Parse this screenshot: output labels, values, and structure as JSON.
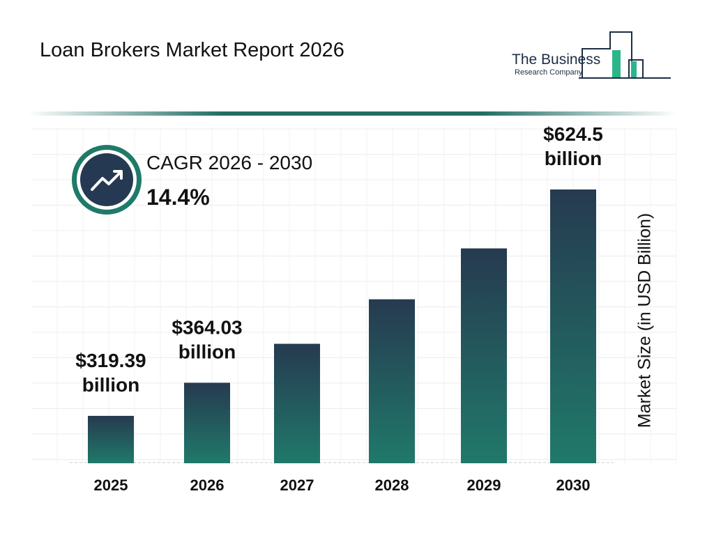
{
  "title": "Loan Brokers Market Report 2026",
  "logo": {
    "line1": "The Business",
    "line2": "Research Company"
  },
  "cagr": {
    "label": "CAGR 2026 - 2030",
    "value": "14.4%",
    "icon": "trending-up-icon"
  },
  "colors": {
    "bar_top": "#263a50",
    "bar_bottom": "#20796a",
    "ring": "#1f7a6a",
    "circle": "#253a52"
  },
  "chart_data": {
    "type": "bar",
    "categories": [
      "2025",
      "2026",
      "2027",
      "2028",
      "2029",
      "2030"
    ],
    "values": [
      319.39,
      364.03,
      416.5,
      476.5,
      545.1,
      624.5
    ],
    "data_labels": [
      {
        "index": 0,
        "line1": "$319.39",
        "line2": "billion"
      },
      {
        "index": 1,
        "line1": "$364.03",
        "line2": "billion"
      },
      {
        "index": 5,
        "line1": "$624.5",
        "line2": "billion"
      }
    ],
    "ylabel": "Market Size (in USD Billion)",
    "xlabel": "",
    "grid": true
  }
}
